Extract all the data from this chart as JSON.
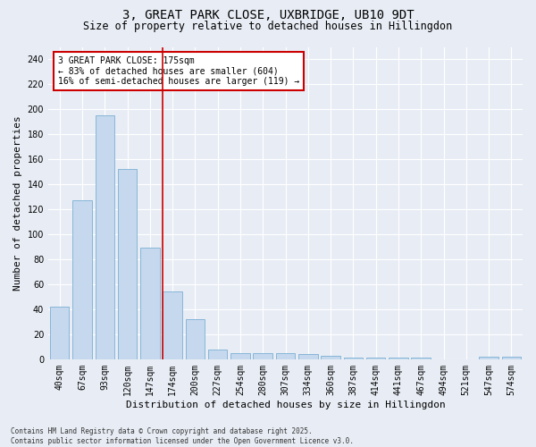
{
  "title_line1": "3, GREAT PARK CLOSE, UXBRIDGE, UB10 9DT",
  "title_line2": "Size of property relative to detached houses in Hillingdon",
  "xlabel": "Distribution of detached houses by size in Hillingdon",
  "ylabel": "Number of detached properties",
  "categories": [
    "40sqm",
    "67sqm",
    "93sqm",
    "120sqm",
    "147sqm",
    "174sqm",
    "200sqm",
    "227sqm",
    "254sqm",
    "280sqm",
    "307sqm",
    "334sqm",
    "360sqm",
    "387sqm",
    "414sqm",
    "441sqm",
    "467sqm",
    "494sqm",
    "521sqm",
    "547sqm",
    "574sqm"
  ],
  "values": [
    42,
    127,
    195,
    152,
    89,
    54,
    32,
    8,
    5,
    5,
    5,
    4,
    3,
    1,
    1,
    1,
    1,
    0,
    0,
    2,
    2
  ],
  "bar_color": "#c5d8ed",
  "bar_edge_color": "#7bafd4",
  "annotation_text": "3 GREAT PARK CLOSE: 175sqm\n← 83% of detached houses are smaller (604)\n16% of semi-detached houses are larger (119) →",
  "annotation_box_color": "#ffffff",
  "annotation_box_edge_color": "#cc0000",
  "property_line_color": "#cc0000",
  "property_line_index": 5,
  "ylim": [
    0,
    250
  ],
  "yticks": [
    0,
    20,
    40,
    60,
    80,
    100,
    120,
    140,
    160,
    180,
    200,
    220,
    240
  ],
  "background_color": "#e8edf5",
  "footer_text": "Contains HM Land Registry data © Crown copyright and database right 2025.\nContains public sector information licensed under the Open Government Licence v3.0.",
  "title_fontsize": 10,
  "subtitle_fontsize": 8.5,
  "axis_label_fontsize": 8,
  "tick_fontsize": 7,
  "annotation_fontsize": 7,
  "footer_fontsize": 5.5
}
